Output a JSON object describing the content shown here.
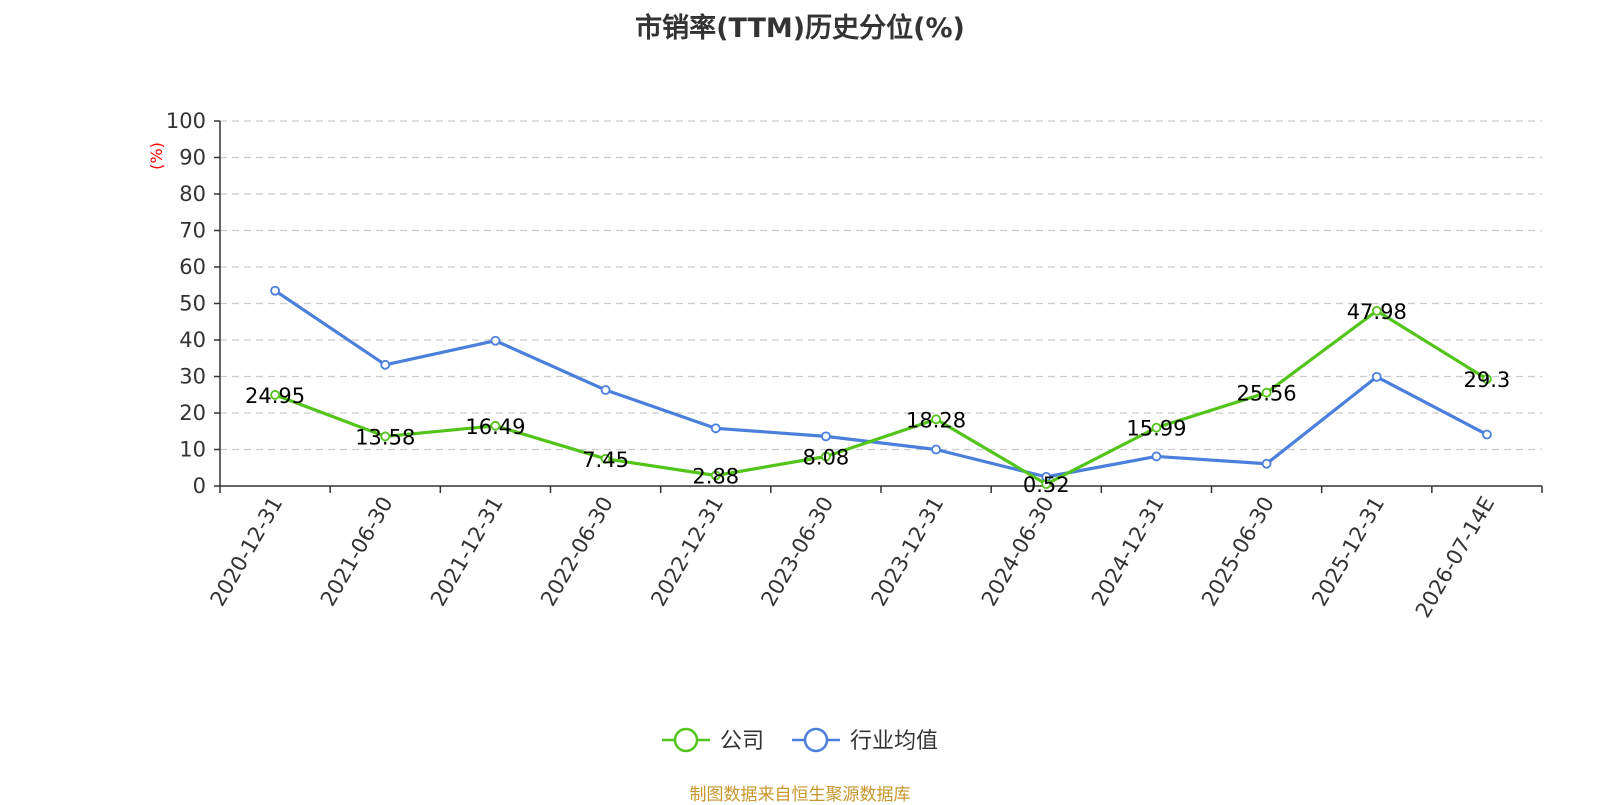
{
  "title": "市销率(TTM)历史分位(%)",
  "source": "制图数据来自恒生聚源数据库",
  "colors": {
    "company": "#52c41a",
    "industry": "#4a7fdc",
    "unit_label": "#ff0000",
    "source": "#c8962c"
  },
  "chart_data": {
    "type": "line",
    "title": "市销率(TTM)历史分位(%)",
    "ylabel": "(%)",
    "ylim": [
      0,
      100
    ],
    "yticks": [
      0,
      10,
      20,
      30,
      40,
      50,
      60,
      70,
      80,
      90,
      100
    ],
    "grid": true,
    "legend_position": "bottom-center",
    "categories": [
      "2020-12-31",
      "2021-06-30",
      "2021-12-31",
      "2022-06-30",
      "2022-12-31",
      "2023-06-30",
      "2023-12-31",
      "2024-06-30",
      "2024-12-31",
      "2025-06-30",
      "2025-12-31",
      "2026-07-14E"
    ],
    "series": [
      {
        "name": "公司",
        "values": [
          24.95,
          13.58,
          16.49,
          7.45,
          2.88,
          8.08,
          18.28,
          0.52,
          15.99,
          25.56,
          47.98,
          29.3
        ],
        "labels": [
          "24.95",
          "13.58",
          "16.49",
          "7.45",
          "2.88",
          "8.08",
          "18.28",
          "0.52",
          "15.99",
          "25.56",
          "47.98",
          "29.3"
        ]
      },
      {
        "name": "行业均值",
        "values": [
          53.5,
          33.2,
          39.8,
          26.3,
          15.8,
          13.6,
          10.0,
          2.5,
          8.1,
          6.1,
          29.9,
          14.1
        ]
      }
    ]
  }
}
